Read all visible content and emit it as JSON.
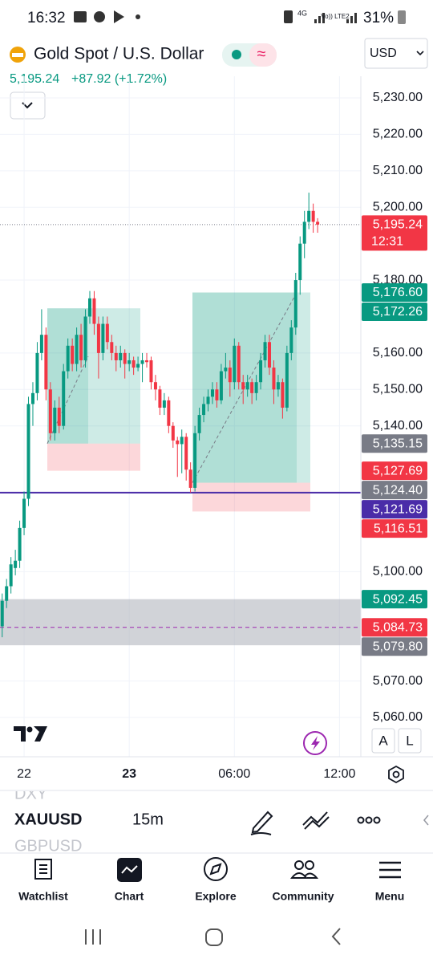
{
  "status_bar": {
    "time": "16:32",
    "network": "4G",
    "signal": "Vo)) LTE2",
    "battery": "31%"
  },
  "header": {
    "title": "Gold Spot / U.S. Dollar",
    "currency": "USD",
    "price": "5,195.24",
    "change": "+87.92 (+1.72%)"
  },
  "chart_data": {
    "type": "candlestick",
    "candles": [
      [
        5085,
        5094,
        5082,
        5092
      ],
      [
        5092,
        5098,
        5090,
        5096
      ],
      [
        5096,
        5104,
        5094,
        5102
      ],
      [
        5101,
        5106,
        5099,
        5103
      ],
      [
        5103,
        5114,
        5101,
        5112
      ],
      [
        5112,
        5122,
        5110,
        5120
      ],
      [
        5120,
        5148,
        5118,
        5146
      ],
      [
        5146,
        5152,
        5140,
        5149
      ],
      [
        5149,
        5163,
        5147,
        5160
      ],
      [
        5160,
        5172,
        5158,
        5165
      ],
      [
        5165,
        5167,
        5147,
        5150
      ],
      [
        5150,
        5152,
        5136,
        5138
      ],
      [
        5138,
        5147,
        5136,
        5145
      ],
      [
        5145,
        5148,
        5138,
        5140
      ],
      [
        5140,
        5157,
        5139,
        5155
      ],
      [
        5155,
        5164,
        5153,
        5162
      ],
      [
        5162,
        5164,
        5155,
        5157
      ],
      [
        5157,
        5167,
        5155,
        5165
      ],
      [
        5165,
        5168,
        5156,
        5158
      ],
      [
        5158,
        5172,
        5156,
        5170
      ],
      [
        5170,
        5177,
        5168,
        5175
      ],
      [
        5175,
        5177,
        5165,
        5168
      ],
      [
        5168,
        5170,
        5153,
        5160
      ],
      [
        5160,
        5170,
        5158,
        5168
      ],
      [
        5168,
        5170,
        5161,
        5163
      ],
      [
        5163,
        5165,
        5158,
        5160
      ],
      [
        5160,
        5162,
        5155,
        5158
      ],
      [
        5158,
        5162,
        5156,
        5160
      ],
      [
        5160,
        5161,
        5153,
        5157
      ],
      [
        5157,
        5160,
        5155,
        5158
      ],
      [
        5158,
        5159,
        5154,
        5156
      ],
      [
        5156,
        5159,
        5155,
        5157
      ],
      [
        5157,
        5160,
        5152,
        5158
      ],
      [
        5158,
        5160,
        5156,
        5157.5
      ],
      [
        5158,
        5159,
        5150,
        5152
      ],
      [
        5152,
        5154,
        5147,
        5150
      ],
      [
        5150,
        5151,
        5143,
        5145
      ],
      [
        5145,
        5149,
        5143,
        5147
      ],
      [
        5147,
        5148,
        5138,
        5140
      ],
      [
        5140,
        5141,
        5134,
        5136
      ],
      [
        5136,
        5137,
        5126,
        5135
      ],
      [
        5135,
        5139,
        5127,
        5137
      ],
      [
        5137,
        5138,
        5125,
        5128
      ],
      [
        5128,
        5130,
        5121.7,
        5123
      ],
      [
        5123,
        5140,
        5122,
        5138
      ],
      [
        5138,
        5145,
        5136,
        5143
      ],
      [
        5143,
        5148,
        5141,
        5146
      ],
      [
        5146,
        5150,
        5144,
        5148
      ],
      [
        5148,
        5152,
        5146,
        5150
      ],
      [
        5150,
        5152,
        5145,
        5147
      ],
      [
        5147,
        5157,
        5146,
        5155
      ],
      [
        5155,
        5160,
        5153,
        5156
      ],
      [
        5156,
        5158,
        5148,
        5152
      ],
      [
        5152,
        5164,
        5150,
        5162
      ],
      [
        5162,
        5163,
        5150,
        5152
      ],
      [
        5152,
        5154,
        5146,
        5150
      ],
      [
        5150,
        5154,
        5148,
        5152
      ],
      [
        5152,
        5153,
        5146,
        5149
      ],
      [
        5149,
        5154,
        5147,
        5152
      ],
      [
        5152,
        5160,
        5150,
        5158
      ],
      [
        5158,
        5165,
        5156,
        5163
      ],
      [
        5163,
        5165,
        5154,
        5156
      ],
      [
        5156,
        5158,
        5146,
        5150
      ],
      [
        5150,
        5154,
        5148,
        5152
      ],
      [
        5152,
        5153,
        5142,
        5145
      ],
      [
        5145,
        5162,
        5144,
        5160
      ],
      [
        5160,
        5169,
        5158,
        5167
      ],
      [
        5167,
        5182,
        5165,
        5180
      ],
      [
        5180,
        5192,
        5176,
        5190
      ],
      [
        5190,
        5199,
        5186,
        5196
      ],
      [
        5196,
        5204,
        5194,
        5199
      ],
      [
        5199,
        5201,
        5193,
        5196
      ],
      [
        5196,
        5197,
        5193,
        5195.24
      ]
    ],
    "colors": {
      "up": "#089981",
      "down": "#f23645"
    },
    "ylim": [
      5050,
      5235
    ],
    "yticks": [
      {
        "value": 5230,
        "label": "5,230.00"
      },
      {
        "value": 5220,
        "label": "5,220.00"
      },
      {
        "value": 5210,
        "label": "5,210.00"
      },
      {
        "value": 5200,
        "label": "5,200.00"
      },
      {
        "value": 5180,
        "label": "5,180.00"
      },
      {
        "value": 5160,
        "label": "5,160.00"
      },
      {
        "value": 5150,
        "label": "5,150.00"
      },
      {
        "value": 5140,
        "label": "5,140.00"
      },
      {
        "value": 5100,
        "label": "5,100.00"
      },
      {
        "value": 5070,
        "label": "5,070.00"
      },
      {
        "value": 5060,
        "label": "5,060.00"
      }
    ],
    "xlim": [
      -0.5,
      81.5
    ],
    "xticks": [
      {
        "value": 5,
        "label": "22"
      },
      {
        "value": 29,
        "label": "23"
      },
      {
        "value": 53,
        "label": "06:00"
      },
      {
        "value": 77,
        "label": "12:00"
      }
    ],
    "grid": true,
    "price_labels": [
      {
        "value": 5195.24,
        "label": "5,195.24",
        "sublabel": "12:31",
        "color": "#f23645"
      },
      {
        "value": 5176.6,
        "label": "5,176.60",
        "color": "#089981"
      },
      {
        "value": 5172.26,
        "label": "5,172.26",
        "color": "#089981"
      },
      {
        "value": 5135.15,
        "label": "5,135.15",
        "color": "#787b86"
      },
      {
        "value": 5127.69,
        "label": "5,127.69",
        "color": "#f23645"
      },
      {
        "value": 5124.4,
        "label": "5,124.40",
        "color": "#787b86"
      },
      {
        "value": 5121.69,
        "label": "5,121.69",
        "color": "#4a2ca8"
      },
      {
        "value": 5116.51,
        "label": "5,116.51",
        "color": "#f23645"
      },
      {
        "value": 5092.45,
        "label": "5,092.45",
        "color": "#089981"
      },
      {
        "value": 5084.73,
        "label": "5,084.73",
        "color": "#f23645"
      },
      {
        "value": 5079.8,
        "label": "5,079.80",
        "color": "#787b86"
      }
    ]
  },
  "toolbar": {
    "symbols": [
      "DXY",
      "XAUUSD",
      "GBPUSD"
    ],
    "interval": "15m",
    "scale_buttons": [
      "A",
      "L"
    ]
  },
  "nav": [
    "Watchlist",
    "Chart",
    "Explore",
    "Community",
    "Menu"
  ]
}
